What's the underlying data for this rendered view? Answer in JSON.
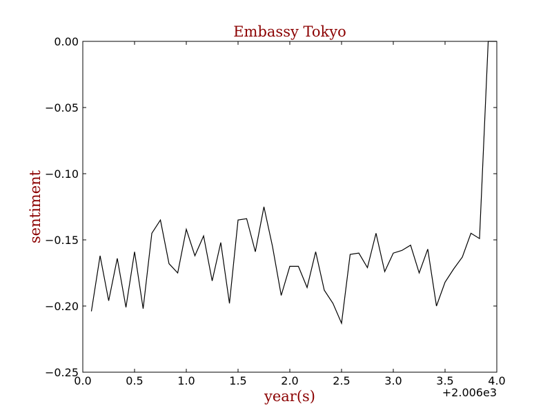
{
  "chart_data": {
    "type": "line",
    "title": "Embassy Tokyo",
    "xlabel": "year(s)",
    "ylabel": "sentiment",
    "x_offset_label": "+2.006e3",
    "xlim": [
      0.0,
      4.0
    ],
    "ylim": [
      -0.25,
      0.0
    ],
    "x_ticks": [
      0.0,
      0.5,
      1.0,
      1.5,
      2.0,
      2.5,
      3.0,
      3.5,
      4.0
    ],
    "x_tick_labels": [
      "0.0",
      "0.5",
      "1.0",
      "1.5",
      "2.0",
      "2.5",
      "3.0",
      "3.5",
      "4.0"
    ],
    "y_ticks": [
      0.0,
      -0.05,
      -0.1,
      -0.15,
      -0.2,
      -0.25
    ],
    "y_tick_labels": [
      "0.00",
      "−0.05",
      "−0.10",
      "−0.15",
      "−0.20",
      "−0.25"
    ],
    "grid": false,
    "colors": {
      "line": "#000000",
      "title": "#8b0000",
      "axis_label": "#8b0000"
    },
    "series": [
      {
        "x": [
          0.083,
          0.167,
          0.25,
          0.333,
          0.417,
          0.5,
          0.583,
          0.667,
          0.75,
          0.833,
          0.917,
          1.0,
          1.083,
          1.167,
          1.25,
          1.333,
          1.417,
          1.5,
          1.583,
          1.667,
          1.75,
          1.833,
          1.917,
          2.0,
          2.083,
          2.167,
          2.25,
          2.333,
          2.417,
          2.5,
          2.583,
          2.667,
          2.75,
          2.833,
          2.917,
          3.0,
          3.083,
          3.167,
          3.25,
          3.333,
          3.417,
          3.5,
          3.583,
          3.667,
          3.75,
          3.833,
          3.917,
          4.0
        ],
        "y": [
          -0.204,
          -0.162,
          -0.196,
          -0.164,
          -0.201,
          -0.159,
          -0.202,
          -0.145,
          -0.135,
          -0.168,
          -0.175,
          -0.142,
          -0.162,
          -0.147,
          -0.181,
          -0.152,
          -0.198,
          -0.135,
          -0.134,
          -0.159,
          -0.125,
          -0.155,
          -0.192,
          -0.17,
          -0.17,
          -0.186,
          -0.159,
          -0.188,
          -0.198,
          -0.213,
          -0.161,
          -0.16,
          -0.171,
          -0.145,
          -0.174,
          -0.16,
          -0.158,
          -0.154,
          -0.175,
          -0.157,
          -0.2,
          -0.182,
          -0.172,
          -0.163,
          -0.145,
          -0.149,
          0.0,
          0.0
        ]
      }
    ]
  }
}
